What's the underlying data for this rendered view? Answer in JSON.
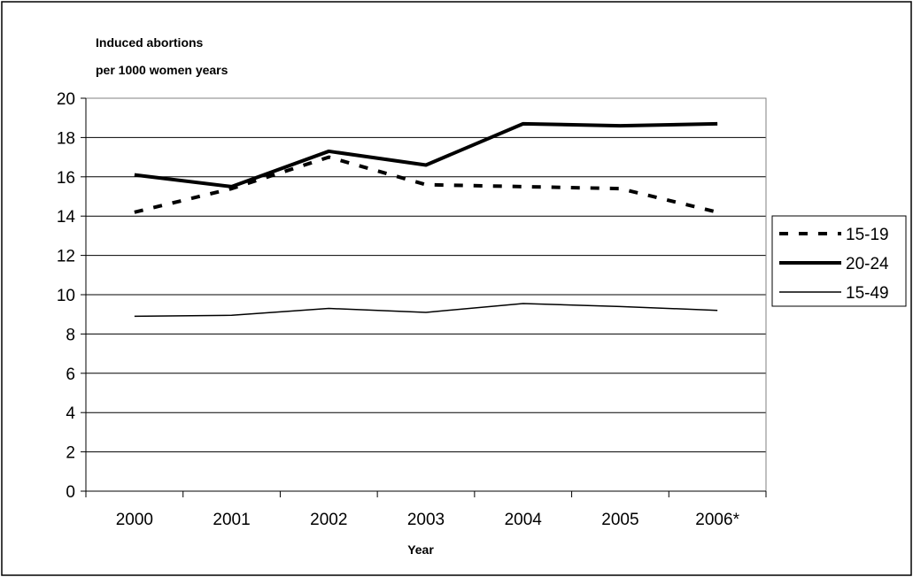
{
  "chart_data": {
    "type": "line",
    "title": "",
    "ylabel_lines": [
      "Induced abortions",
      "per 1000 women years"
    ],
    "xlabel": "Year",
    "categories": [
      "2000",
      "2001",
      "2002",
      "2003",
      "2004",
      "2005",
      "2006*"
    ],
    "ylim": [
      0,
      20
    ],
    "yticks": [
      0,
      2,
      4,
      6,
      8,
      10,
      12,
      14,
      16,
      18,
      20
    ],
    "grid": true,
    "legend_position": "right",
    "series": [
      {
        "name": "15-19",
        "style": "dashed-thick",
        "color": "#000000",
        "values": [
          14.2,
          15.4,
          17.0,
          15.6,
          15.5,
          15.4,
          14.2
        ]
      },
      {
        "name": "20-24",
        "style": "solid-thick",
        "color": "#000000",
        "values": [
          16.1,
          15.5,
          17.3,
          16.6,
          18.7,
          18.6,
          18.7
        ]
      },
      {
        "name": "15-49",
        "style": "solid-thin",
        "color": "#000000",
        "values": [
          8.9,
          8.95,
          9.3,
          9.1,
          9.55,
          9.4,
          9.2
        ]
      }
    ]
  }
}
